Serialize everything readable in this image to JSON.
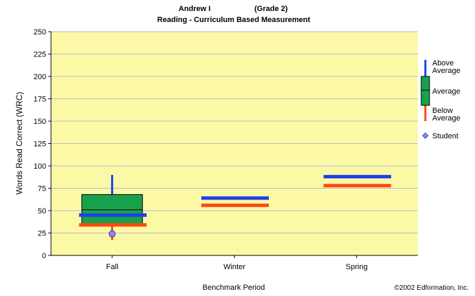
{
  "header": {
    "student_name": "Andrew I",
    "grade": "(Grade 2)",
    "subtitle": "Reading - Curriculum Based Measurement"
  },
  "footer": {
    "copyright": "©2002 Edformation, Inc."
  },
  "colors": {
    "plot_bg": "#fcf9a6",
    "grid": "#b6b6dc",
    "box_fill": "#19a14b",
    "above_average": "#1f3fe8",
    "below_average": "#ff4a12",
    "student_marker": "#8c8ce0"
  },
  "chart_data": {
    "type": "box",
    "title": "Reading - Curriculum Based Measurement",
    "xlabel": "Benchmark Period",
    "ylabel": "Words Read Correct (WRC)",
    "ylim": [
      0,
      250
    ],
    "yticks": [
      0,
      25,
      50,
      75,
      100,
      125,
      150,
      175,
      200,
      225,
      250
    ],
    "grid": true,
    "legend_placement": "right",
    "categories": [
      "Fall",
      "Winter",
      "Spring"
    ],
    "boxes": [
      {
        "category": "Fall",
        "whisker_low": 17,
        "q1": 35,
        "median": 51,
        "q3": 68,
        "whisker_high": 90
      }
    ],
    "above_average_line": [
      45,
      64,
      88
    ],
    "below_average_line": [
      34,
      56,
      78
    ],
    "student_scores": [
      {
        "category": "Fall",
        "value": 24
      }
    ],
    "legend": [
      {
        "name": "Above Average",
        "lines": [
          "Above",
          "Average"
        ],
        "color": "#1f3fe8"
      },
      {
        "name": "Average",
        "lines": [
          "Average"
        ],
        "color": "#19a14b"
      },
      {
        "name": "Below Average",
        "lines": [
          "Below",
          "Average"
        ],
        "color": "#ff4a12"
      },
      {
        "name": "Student",
        "lines": [
          "Student"
        ],
        "color": "#8c8ce0"
      }
    ]
  }
}
